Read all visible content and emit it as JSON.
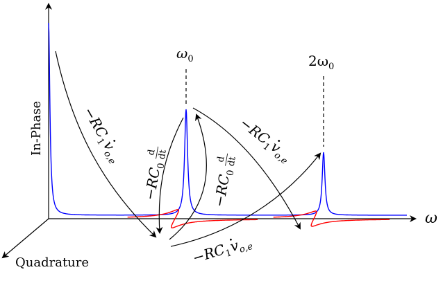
{
  "axes": {
    "vertical_label": "In-Phase",
    "depth_label": "Quadrature",
    "horizontal_label": "ω"
  },
  "peaks": {
    "first": "ω",
    "first_sub": "0",
    "second": "2ω",
    "second_sub": "0"
  },
  "arrow_labels": {
    "a1": {
      "main": "−RC",
      "sub1": "1",
      "dotv": "v",
      "sub2": "o,e"
    },
    "a2": {
      "main": "−RC",
      "sub1": "0",
      "frac_num": "d",
      "frac_den": "dt"
    },
    "a3": {
      "main": "−RC",
      "sub1": "0",
      "frac_num": "d",
      "frac_den": "dt"
    },
    "a4": {
      "main": "−RC",
      "sub1": "1",
      "dotv": "v",
      "sub2": "o,e"
    },
    "a5": {
      "main": "−RC",
      "sub1": "1",
      "dotv": "v",
      "sub2": "o,e"
    }
  },
  "colors": {
    "in_phase_curve": "#0000ff",
    "quadrature_curve": "#ff0000",
    "axes": "#000000"
  }
}
